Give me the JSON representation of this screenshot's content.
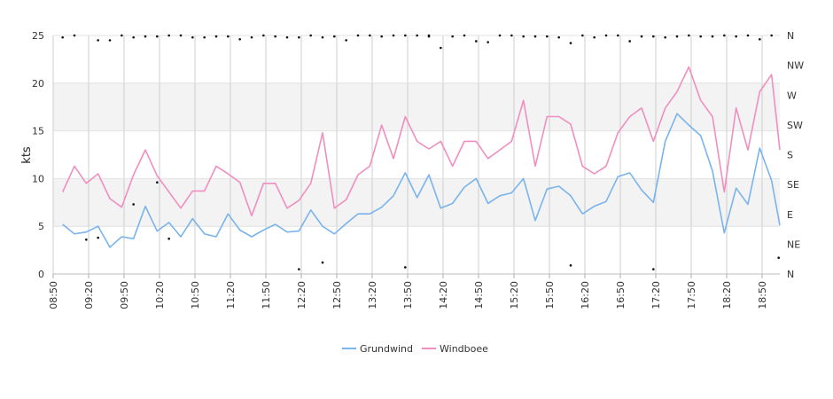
{
  "chart_data": {
    "type": "line",
    "ylabel": "kts",
    "ylim": [
      0,
      25
    ],
    "y_ticks": [
      "0",
      "5",
      "10",
      "15",
      "20",
      "25"
    ],
    "right_axis_labels": [
      "N",
      "NE",
      "E",
      "SE",
      "S",
      "SW",
      "W",
      "NW",
      "N"
    ],
    "x_tick_labels": [
      "08:50",
      "09:20",
      "09:50",
      "10:20",
      "10:50",
      "11:20",
      "11:50",
      "12:20",
      "12:50",
      "13:20",
      "13:50",
      "14:20",
      "14:50",
      "15:20",
      "15:50",
      "16:20",
      "16:50",
      "17:20",
      "17:50",
      "18:20",
      "18:50"
    ],
    "x_range_minutes": [
      530,
      1145
    ],
    "grid": true,
    "legend_placement": "bottom-center",
    "series": [
      {
        "name": "Grundwind",
        "color": "#7ab4ec",
        "x_minutes": [
          538,
          548,
          558,
          568,
          578,
          588,
          598,
          608,
          618,
          628,
          638,
          648,
          658,
          668,
          678,
          688,
          698,
          708,
          718,
          728,
          738,
          748,
          758,
          768,
          778,
          788,
          798,
          808,
          818,
          828,
          838,
          848,
          858,
          868,
          878,
          888,
          898,
          908,
          918,
          928,
          938,
          948,
          958,
          968,
          978,
          988,
          998,
          1008,
          1018,
          1028,
          1038,
          1048,
          1058,
          1068,
          1078,
          1088,
          1098,
          1108,
          1118,
          1128,
          1138,
          1145
        ],
        "values": [
          5.2,
          4.2,
          4.4,
          5.0,
          2.8,
          3.9,
          3.7,
          7.1,
          4.5,
          5.4,
          3.9,
          5.8,
          4.2,
          3.9,
          6.3,
          4.6,
          3.9,
          4.6,
          5.2,
          4.4,
          4.5,
          6.7,
          5.0,
          4.2,
          5.3,
          6.3,
          6.3,
          7.0,
          8.2,
          10.6,
          8.0,
          10.4,
          6.9,
          7.4,
          9.1,
          10.0,
          7.4,
          8.2,
          8.5,
          10.0,
          5.6,
          8.9,
          9.2,
          8.2,
          6.3,
          7.1,
          7.6,
          10.2,
          10.6,
          8.8,
          7.5,
          13.9,
          16.8,
          15.6,
          14.5,
          10.8,
          4.3,
          9.0,
          7.3,
          13.2,
          9.8,
          5.1
        ]
      },
      {
        "name": "Windboee",
        "color": "#f08fbf",
        "x_minutes": [
          538,
          548,
          558,
          568,
          578,
          588,
          598,
          608,
          618,
          628,
          638,
          648,
          658,
          668,
          678,
          688,
          698,
          708,
          718,
          728,
          738,
          748,
          758,
          768,
          778,
          788,
          798,
          808,
          818,
          828,
          838,
          848,
          858,
          868,
          878,
          888,
          898,
          908,
          918,
          928,
          938,
          948,
          958,
          968,
          978,
          988,
          998,
          1008,
          1018,
          1028,
          1038,
          1048,
          1058,
          1068,
          1078,
          1088,
          1098,
          1108,
          1118,
          1128,
          1138,
          1145
        ],
        "values": [
          8.6,
          11.3,
          9.5,
          10.5,
          7.9,
          7.0,
          10.4,
          13.0,
          10.3,
          8.6,
          6.9,
          8.7,
          8.7,
          11.3,
          10.5,
          9.6,
          6.1,
          9.5,
          9.5,
          6.9,
          7.7,
          9.5,
          14.8,
          6.9,
          7.8,
          10.4,
          11.3,
          15.6,
          12.1,
          16.5,
          13.9,
          13.1,
          13.9,
          11.3,
          13.9,
          13.9,
          12.1,
          13.0,
          13.9,
          18.2,
          11.3,
          16.5,
          16.5,
          15.7,
          11.3,
          10.5,
          11.3,
          14.8,
          16.5,
          17.4,
          13.9,
          17.4,
          19.1,
          21.7,
          18.2,
          16.5,
          8.6,
          17.4,
          13.0,
          19.1,
          20.9,
          13.0
        ]
      },
      {
        "name": "",
        "mark": "dot",
        "axis": "right",
        "x_minutes": [
          538,
          548,
          568,
          578,
          588,
          598,
          608,
          618,
          628,
          638,
          648,
          658,
          668,
          678,
          688,
          698,
          708,
          718,
          728,
          738,
          748,
          758,
          768,
          778,
          788,
          798,
          808,
          818,
          828,
          838,
          848,
          858,
          868,
          878,
          888,
          898,
          908,
          918,
          928,
          938,
          948,
          958,
          968,
          978,
          988,
          998,
          1008,
          1018,
          1028,
          1038,
          1048,
          1058,
          1068,
          1078,
          1088,
          1098,
          1108,
          1118,
          1128,
          1138,
          1144,
          598,
          618,
          628,
          568,
          558,
          738,
          758,
          828,
          848,
          968,
          1038
        ],
        "values": [
          24.8,
          25.0,
          3.8,
          24.5,
          25.0,
          7.3,
          24.9,
          9.6,
          3.7,
          25.0,
          24.8,
          24.8,
          24.9,
          24.9,
          24.6,
          24.8,
          25.0,
          24.9,
          24.8,
          0.5,
          25.0,
          1.2,
          24.9,
          24.5,
          25.0,
          25.0,
          24.9,
          25.0,
          25.0,
          25.0,
          25.0,
          23.7,
          24.9,
          25.0,
          24.4,
          24.3,
          25.0,
          25.0,
          24.9,
          24.9,
          24.9,
          24.8,
          24.2,
          25.0,
          24.8,
          25.0,
          25.0,
          24.4,
          24.9,
          0.5,
          24.8,
          24.9,
          25.0,
          24.9,
          24.9,
          25.0,
          24.9,
          25.0,
          24.6,
          25.0,
          1.7,
          24.8,
          24.9,
          25.0,
          24.5,
          3.6,
          24.8,
          24.8,
          0.7,
          24.9,
          0.9,
          24.9
        ]
      }
    ]
  }
}
